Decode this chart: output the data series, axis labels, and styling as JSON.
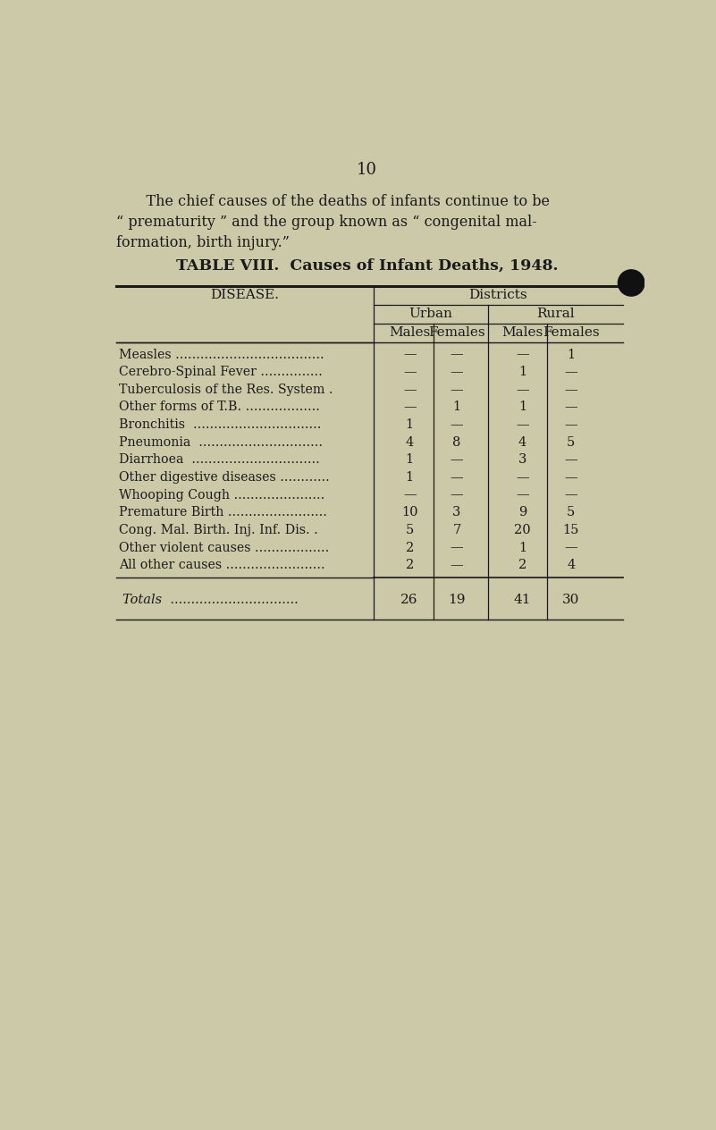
{
  "page_number": "10",
  "intro_line1": "    The chief causes of the deaths of infants continue to be",
  "intro_line2": "“ prematurity ” and the group known as “ congenital mal-",
  "intro_line3": "formation, birth injury.”",
  "table_title": "TABLE VIII.  Causes of Infant Deaths, 1948.",
  "background_color": "#cbc9a8",
  "text_color": "#1a1a1a",
  "diseases": [
    "Measles ....................................",
    "Cerebro-Spinal Fever ...............",
    "Tuberculosis of the Res. System .",
    "Other forms of T.B. ..................",
    "Bronchitis  ...............................",
    "Pneumonia  ..............................",
    "Diarrhoea  ...............................",
    "Other digestive diseases ............",
    "Whooping Cough ......................",
    "Premature Birth ........................",
    "Cong. Mal. Birth. Inj. Inf. Dis. .",
    "Other violent causes ..................",
    "All other causes ........................"
  ],
  "urban_males": [
    "—",
    "—",
    "—",
    "—",
    "1",
    "4",
    "1",
    "1",
    "—",
    "10",
    "5",
    "2",
    "2"
  ],
  "urban_females": [
    "—",
    "—",
    "—",
    "1",
    "—",
    "8",
    "—",
    "—",
    "—",
    "3",
    "7",
    "—",
    "—"
  ],
  "rural_males": [
    "—",
    "1",
    "—",
    "1",
    "—",
    "4",
    "3",
    "—",
    "—",
    "9",
    "20",
    "1",
    "2"
  ],
  "rural_females": [
    "1",
    "—",
    "—",
    "—",
    "—",
    "5",
    "—",
    "—",
    "—",
    "5",
    "15",
    "—",
    "4"
  ],
  "totals": [
    "26",
    "19",
    "41",
    "30"
  ]
}
